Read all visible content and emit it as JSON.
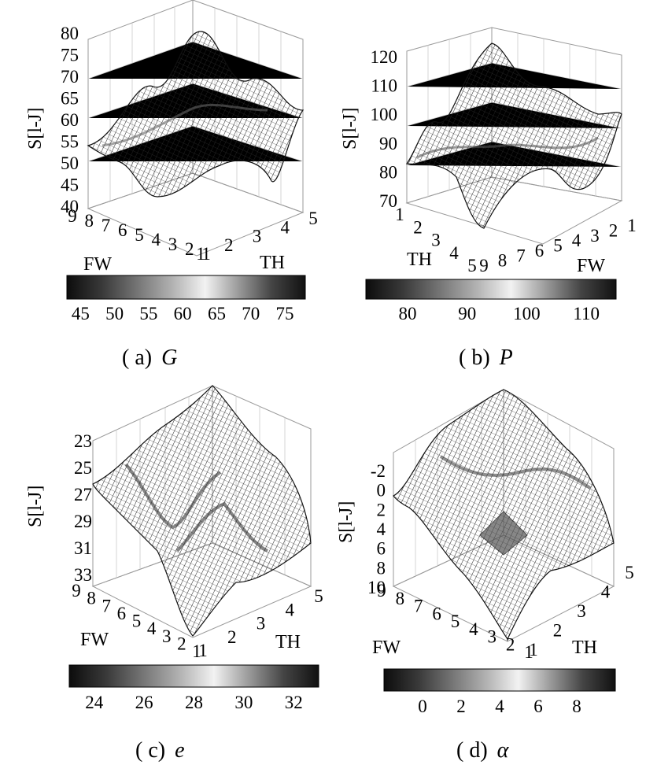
{
  "chart_data": [
    {
      "panel": "a",
      "type": "surface",
      "caption_prefix": "( a)",
      "caption_var": "G",
      "zlabel": "S[l-J]",
      "xlabel": "FW",
      "ylabel": "TH",
      "fw_ticks": [
        "9",
        "8",
        "7",
        "6",
        "5",
        "4",
        "3",
        "2",
        "1"
      ],
      "th_ticks": [
        "1",
        "2",
        "3",
        "4",
        "5"
      ],
      "z_ticks": [
        "80",
        "75",
        "70",
        "65",
        "60",
        "55",
        "50",
        "45",
        "40"
      ],
      "zlim": [
        40,
        80
      ],
      "colorbar_ticks": [
        "45",
        "50",
        "55",
        "60",
        "65",
        "70",
        "75"
      ],
      "colorbar_range": [
        43,
        78
      ]
    },
    {
      "panel": "b",
      "type": "surface",
      "caption_prefix": "( b)",
      "caption_var": "P",
      "zlabel": "S[l-J]",
      "xlabel": "FW",
      "ylabel": "TH",
      "th_ticks": [
        "1",
        "2",
        "3",
        "4",
        "5"
      ],
      "fw_ticks": [
        "9",
        "8",
        "7",
        "6",
        "5",
        "4",
        "3",
        "2",
        "1"
      ],
      "z_ticks": [
        "120",
        "110",
        "100",
        "90",
        "80",
        "70"
      ],
      "zlim": [
        70,
        120
      ],
      "colorbar_ticks": [
        "80",
        "90",
        "100",
        "110"
      ],
      "colorbar_range": [
        73,
        115
      ]
    },
    {
      "panel": "c",
      "type": "surface",
      "caption_prefix": "( c)",
      "caption_var": "e",
      "zlabel": "S[l-J]",
      "xlabel": "FW",
      "ylabel": "TH",
      "fw_ticks": [
        "9",
        "8",
        "7",
        "6",
        "5",
        "4",
        "3",
        "2",
        "1"
      ],
      "th_ticks": [
        "1",
        "2",
        "3",
        "4",
        "5"
      ],
      "z_ticks": [
        "23",
        "25",
        "27",
        "29",
        "31",
        "33"
      ],
      "zlim": [
        23,
        33
      ],
      "colorbar_ticks": [
        "24",
        "26",
        "28",
        "30",
        "32"
      ],
      "colorbar_range": [
        23,
        33
      ]
    },
    {
      "panel": "d",
      "type": "surface",
      "caption_prefix": "( d)",
      "caption_var": "α",
      "zlabel": "S[l-J]",
      "xlabel": "FW",
      "ylabel": "TH",
      "fw_ticks": [
        "9",
        "8",
        "7",
        "6",
        "5",
        "4",
        "3",
        "2",
        "1"
      ],
      "th_ticks": [
        "1",
        "2",
        "3",
        "4",
        "5"
      ],
      "z_ticks": [
        "-2",
        "0",
        "2",
        "4",
        "6",
        "8",
        "10"
      ],
      "zlim": [
        -2,
        10
      ],
      "colorbar_ticks": [
        "0",
        "2",
        "4",
        "6",
        "8"
      ],
      "colorbar_range": [
        -2,
        10
      ]
    }
  ]
}
